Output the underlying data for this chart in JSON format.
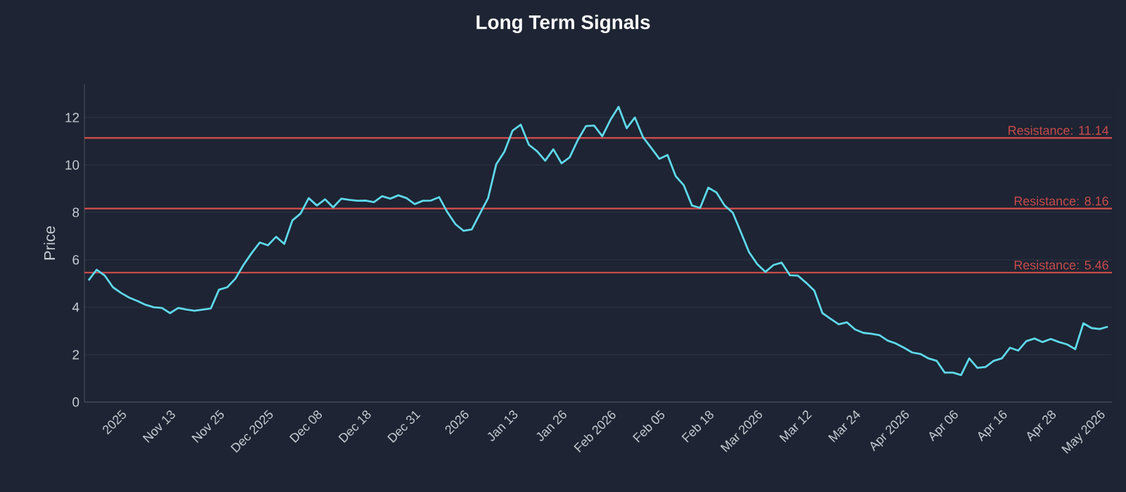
{
  "chart_data": {
    "type": "line",
    "title": "Long Term Signals",
    "ylabel": "Price",
    "categories": [
      null,
      null,
      null,
      null,
      "2025",
      null,
      null,
      null,
      null,
      null,
      "Nov 13",
      null,
      null,
      null,
      null,
      null,
      "Nov 25",
      null,
      null,
      null,
      null,
      null,
      "Dec 2025",
      null,
      null,
      null,
      null,
      null,
      "Dec 08",
      null,
      null,
      null,
      null,
      null,
      "Dec 18",
      null,
      null,
      null,
      null,
      null,
      "Dec 31",
      null,
      null,
      null,
      null,
      null,
      "2026",
      null,
      null,
      null,
      null,
      null,
      "Jan 13",
      null,
      null,
      null,
      null,
      null,
      "Jan 26",
      null,
      null,
      null,
      null,
      null,
      "Feb 2026",
      null,
      null,
      null,
      null,
      null,
      "Feb 05",
      null,
      null,
      null,
      null,
      null,
      "Feb 18",
      null,
      null,
      null,
      null,
      null,
      "Mar 2026",
      null,
      null,
      null,
      null,
      null,
      "Mar 12",
      null,
      null,
      null,
      null,
      null,
      "Mar 24",
      null,
      null,
      null,
      null,
      null,
      "Apr 2026",
      null,
      null,
      null,
      null,
      null,
      "Apr 06",
      null,
      null,
      null,
      null,
      null,
      "Apr 16",
      null,
      null,
      null,
      null,
      null,
      "Apr 28",
      null,
      null,
      null,
      null,
      null,
      "May 2026",
      null
    ],
    "series": [
      {
        "color": "#5ed8ea",
        "values": [
          5.13,
          5.58,
          5.33,
          4.84,
          4.6,
          4.4,
          4.26,
          4.1,
          4.0,
          3.97,
          3.75,
          3.97,
          3.9,
          3.85,
          3.9,
          3.95,
          4.74,
          4.84,
          5.2,
          5.78,
          6.28,
          6.73,
          6.61,
          6.97,
          6.67,
          7.66,
          7.95,
          8.6,
          8.29,
          8.55,
          8.21,
          8.58,
          8.53,
          8.49,
          8.5,
          8.43,
          8.68,
          8.58,
          8.72,
          8.6,
          8.35,
          8.49,
          8.5,
          8.64,
          8.01,
          7.5,
          7.22,
          7.28,
          7.95,
          8.6,
          10.03,
          10.56,
          11.45,
          11.7,
          10.85,
          10.58,
          10.18,
          10.66,
          10.07,
          10.32,
          11.05,
          11.64,
          11.66,
          11.21,
          11.9,
          12.45,
          11.55,
          12.0,
          11.17,
          10.72,
          10.26,
          10.42,
          9.53,
          9.14,
          8.29,
          8.19,
          9.04,
          8.84,
          8.29,
          7.99,
          7.16,
          6.32,
          5.82,
          5.49,
          5.78,
          5.88,
          5.35,
          5.33,
          5.03,
          4.7,
          3.75,
          3.51,
          3.28,
          3.36,
          3.06,
          2.92,
          2.88,
          2.82,
          2.59,
          2.47,
          2.29,
          2.09,
          2.03,
          1.84,
          1.74,
          1.24,
          1.24,
          1.14,
          1.84,
          1.44,
          1.48,
          1.74,
          1.84,
          2.29,
          2.17,
          2.57,
          2.68,
          2.53,
          2.66,
          2.53,
          2.43,
          2.23,
          3.32,
          3.12,
          3.08,
          3.18
        ]
      }
    ],
    "ylim": [
      0,
      13.4
    ],
    "yticks": [
      0,
      2,
      4,
      6,
      8,
      10,
      12
    ],
    "grid": "y",
    "ref_lines": [
      {
        "axis": "y",
        "value": 11.14,
        "label": "Resistance: 11.14",
        "color": "#c84b4b"
      },
      {
        "axis": "y",
        "value": 8.16,
        "label": "Resistance: 8.16",
        "color": "#c84b4b"
      },
      {
        "axis": "y",
        "value": 5.46,
        "label": "Resistance: 5.46",
        "color": "#c84b4b"
      }
    ]
  }
}
